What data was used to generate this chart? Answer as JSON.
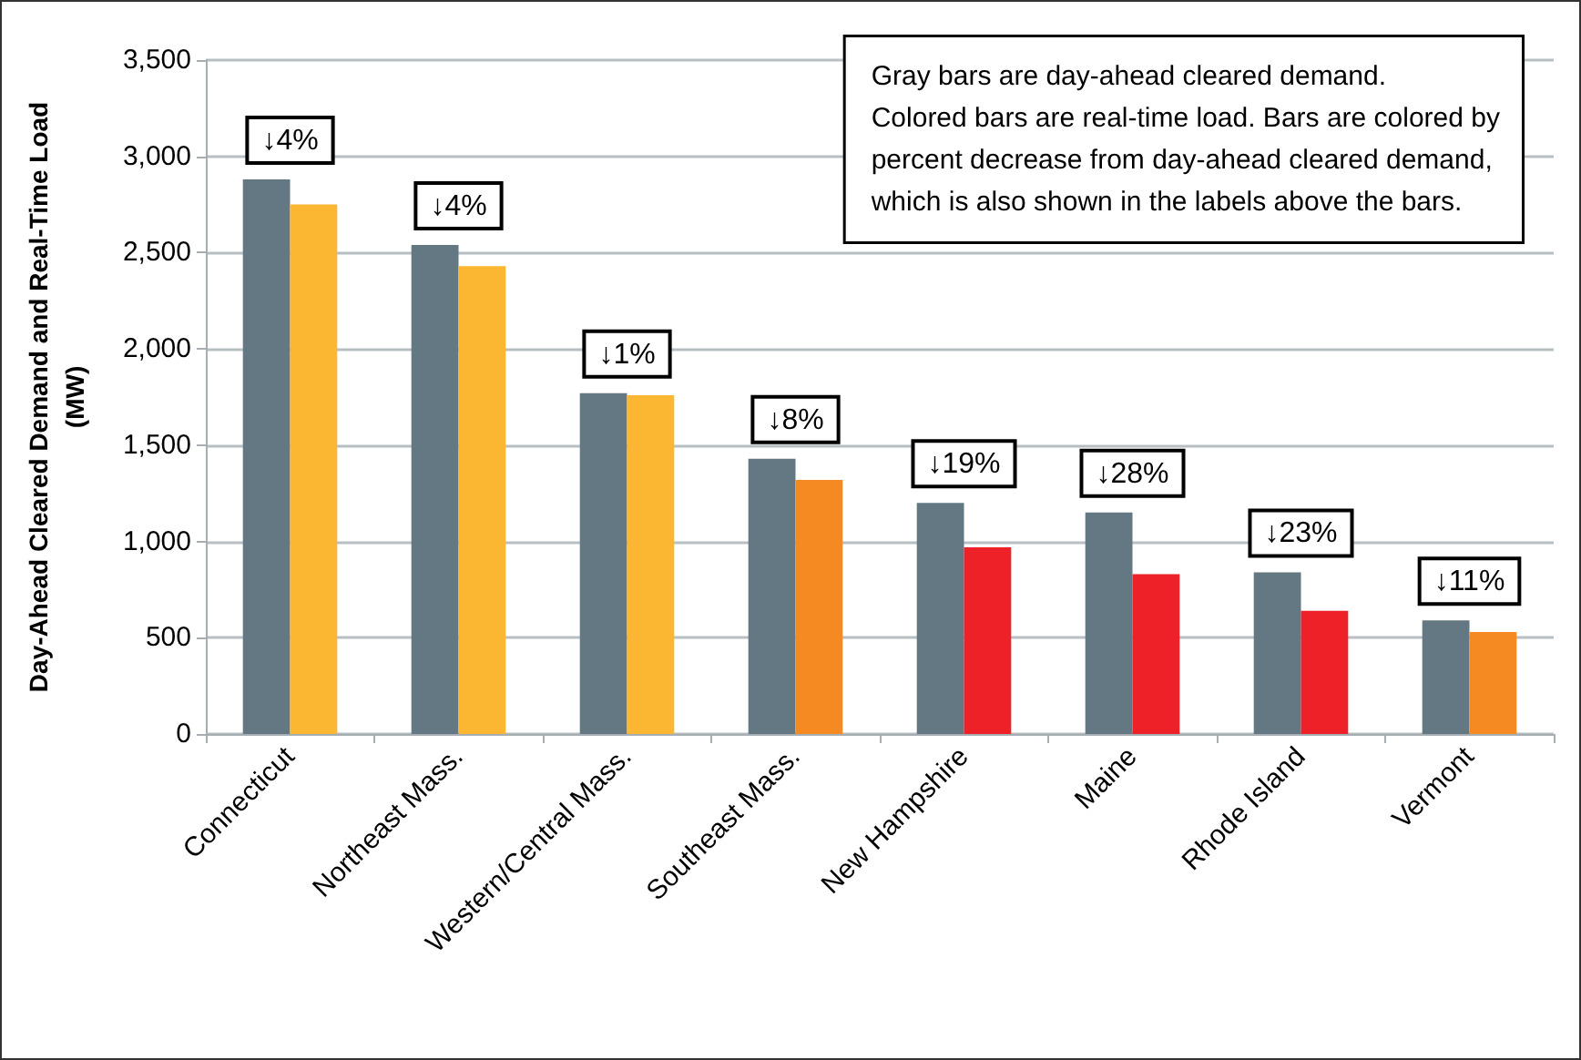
{
  "chart_data": {
    "type": "bar",
    "ylabel": "Day-Ahead Cleared Demand and Real-Time Load\n(MW)",
    "categories": [
      "Connecticut",
      "Northeast Mass.",
      "Western/Central Mass.",
      "Southeast Mass.",
      "New Hampshire",
      "Maine",
      "Rhode Island",
      "Vermont"
    ],
    "series": [
      {
        "color": "#637882",
        "values": [
          2880,
          2540,
          1770,
          1430,
          1200,
          1150,
          840,
          590
        ]
      },
      {
        "colors": [
          "#fbb731",
          "#fbb731",
          "#fbb731",
          "#f58a22",
          "#ee2128",
          "#ee2128",
          "#ee2128",
          "#f58a22"
        ],
        "values": [
          2750,
          2430,
          1760,
          1320,
          970,
          830,
          640,
          530
        ]
      }
    ],
    "ylim": [
      0,
      3500
    ],
    "yticks": [
      {
        "value": 0,
        "label": "0"
      },
      {
        "value": 500,
        "label": "500"
      },
      {
        "value": 1000,
        "label": "1,000"
      },
      {
        "value": 1500,
        "label": "1,500"
      },
      {
        "value": 2000,
        "label": "2,000"
      },
      {
        "value": 2500,
        "label": "2,500"
      },
      {
        "value": 3000,
        "label": "3,000"
      },
      {
        "value": 3500,
        "label": "3,500"
      }
    ],
    "grid": "y",
    "annotations": [
      {
        "text": "↓4%",
        "x": "Connecticut",
        "y": 2880
      },
      {
        "text": "↓4%",
        "x": "Northeast Mass.",
        "y": 2540
      },
      {
        "text": "↓1%",
        "x": "Western/Central Mass.",
        "y": 1770
      },
      {
        "text": "↓8%",
        "x": "Southeast Mass.",
        "y": 1430
      },
      {
        "text": "↓19%",
        "x": "New Hampshire",
        "y": 1200
      },
      {
        "text": "↓28%",
        "x": "Maine",
        "y": 1150
      },
      {
        "text": "↓23%",
        "x": "Rhode Island",
        "y": 840
      },
      {
        "text": "↓11%",
        "x": "Vermont",
        "y": 590
      },
      "Gray bars are day-ahead cleared demand.\nColored bars are real-time load. Bars are colored by\npercent decrease from day-ahead cleared demand,\nwhich is also shown in the labels above the bars."
    ]
  }
}
